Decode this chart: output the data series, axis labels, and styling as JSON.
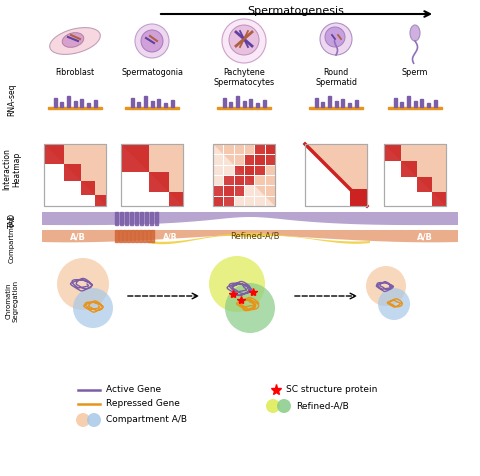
{
  "title": "Spermatogenesis",
  "cell_labels": [
    "Fibroblast",
    "Spermatogonia",
    "Pachytene\nSpermatocytes",
    "Round\nSpermatid",
    "Sperm"
  ],
  "bg_color": "#ffffff",
  "purple": "#7B5EA7",
  "orange": "#E8931A",
  "light_purple": "#C9A8D8",
  "purple_band": "#B09ACA",
  "salmon": "#E8A078",
  "light_salmon": "#F5C8B0",
  "red": "#CC2222",
  "dark_red": "#AA1111",
  "yellow": "#F0D040",
  "light_green": "#88CC88",
  "light_blue": "#A8C8E8",
  "light_peach": "#F5C8A0",
  "cell_body_fib": "#F8D8E0",
  "cell_border_fib": "#C8A0B8",
  "cell_body": "#EDD8F0",
  "cell_border": "#C0A0CC",
  "nuc_fill": "#D8B0E0",
  "nuc_border": "#A880C0"
}
